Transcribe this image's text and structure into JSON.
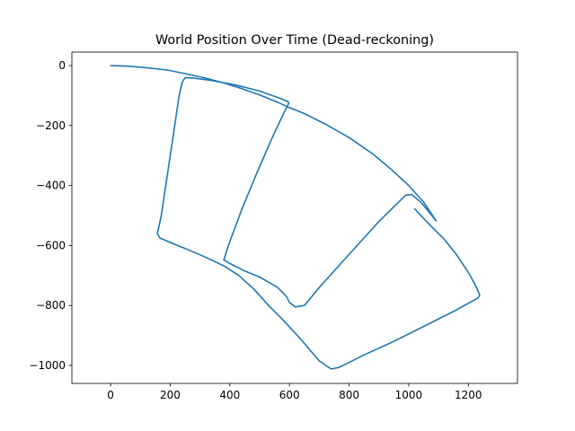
{
  "chart_data": {
    "type": "line",
    "title": "World Position Over Time (Dead-reckoning)",
    "xlabel": "",
    "ylabel": "",
    "xlim": [
      -130,
      1365
    ],
    "ylim": [
      -1060,
      45
    ],
    "x_ticks": [
      0,
      200,
      400,
      600,
      800,
      1000,
      1200
    ],
    "x_tick_labels": [
      "0",
      "200",
      "400",
      "600",
      "800",
      "1000",
      "1200"
    ],
    "y_ticks": [
      0,
      -200,
      -400,
      -600,
      -800,
      -1000
    ],
    "y_tick_labels": [
      "0",
      "−200",
      "−400",
      "−600",
      "−800",
      "−1000"
    ],
    "grid": false,
    "legend": "none",
    "series": [
      {
        "color": "#1f77b4",
        "x": [
          0,
          60,
          120,
          190,
          250,
          320,
          380,
          440,
          500,
          560,
          600,
          650,
          720,
          800,
          880,
          940,
          1000,
          1050,
          1092,
          1070,
          1040,
          1010,
          990,
          900,
          800,
          700,
          650,
          620,
          600,
          590,
          560,
          500,
          450,
          400,
          380,
          395,
          440,
          490,
          540,
          580,
          598,
          595,
          570,
          500,
          420,
          340,
          280,
          250,
          240,
          230,
          215,
          200,
          185,
          170,
          157,
          165,
          200,
          250,
          320,
          380,
          430,
          480,
          530,
          580,
          640,
          700,
          740,
          765,
          790,
          850,
          950,
          1050,
          1150,
          1233,
          1238,
          1225,
          1200,
          1160,
          1120,
          1080,
          1050,
          1020
        ],
        "y": [
          0,
          -2,
          -7,
          -15,
          -27,
          -42,
          -58,
          -77,
          -98,
          -122,
          -140,
          -160,
          -195,
          -240,
          -295,
          -345,
          -400,
          -455,
          -518,
          -490,
          -455,
          -430,
          -432,
          -520,
          -630,
          -740,
          -800,
          -805,
          -790,
          -770,
          -740,
          -705,
          -685,
          -660,
          -648,
          -600,
          -480,
          -360,
          -245,
          -160,
          -125,
          -120,
          -110,
          -85,
          -65,
          -50,
          -42,
          -40,
          -55,
          -100,
          -200,
          -300,
          -400,
          -500,
          -560,
          -575,
          -590,
          -610,
          -640,
          -668,
          -700,
          -745,
          -800,
          -850,
          -915,
          -985,
          -1012,
          -1007,
          -995,
          -965,
          -920,
          -870,
          -820,
          -775,
          -765,
          -735,
          -690,
          -630,
          -580,
          -540,
          -510,
          -478
        ]
      }
    ]
  }
}
